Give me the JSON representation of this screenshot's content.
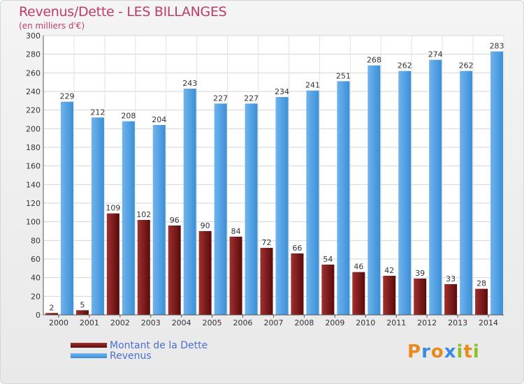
{
  "header": {
    "title": "Revenus/Dette - LES BILLANGES",
    "subtitle": "(en milliers d'€)"
  },
  "legend": {
    "dette": "Montant de la Dette",
    "revenus": "Revenus"
  },
  "logo": {
    "letters": [
      "P",
      "r",
      "o",
      "x",
      "i",
      "t",
      "i"
    ]
  },
  "colors": {
    "dette_top": "#a03030",
    "dette_bottom": "#5a0a0a",
    "revenus_top": "#6fb3ee",
    "revenus_bottom": "#3b8fd6",
    "title": "#c03a6e",
    "legend_text": "#4a6fd0"
  },
  "chart_data": {
    "type": "bar",
    "title": "Revenus/Dette - LES BILLANGES",
    "ylabel": "(en milliers d'€)",
    "xlabel": "",
    "ylim": [
      0,
      300
    ],
    "yticks": [
      0,
      20,
      40,
      60,
      80,
      100,
      120,
      140,
      160,
      180,
      200,
      220,
      240,
      260,
      280,
      300
    ],
    "grid": true,
    "categories": [
      "2000",
      "2001",
      "2002",
      "2003",
      "2004",
      "2005",
      "2006",
      "2007",
      "2008",
      "2009",
      "2010",
      "2011",
      "2012",
      "2013",
      "2014"
    ],
    "series": [
      {
        "name": "Montant de la Dette",
        "values": [
          2,
          5,
          109,
          102,
          96,
          90,
          84,
          72,
          66,
          54,
          46,
          42,
          39,
          33,
          28
        ]
      },
      {
        "name": "Revenus",
        "values": [
          229,
          212,
          208,
          204,
          243,
          227,
          227,
          234,
          241,
          251,
          268,
          262,
          274,
          262,
          283
        ]
      }
    ]
  }
}
